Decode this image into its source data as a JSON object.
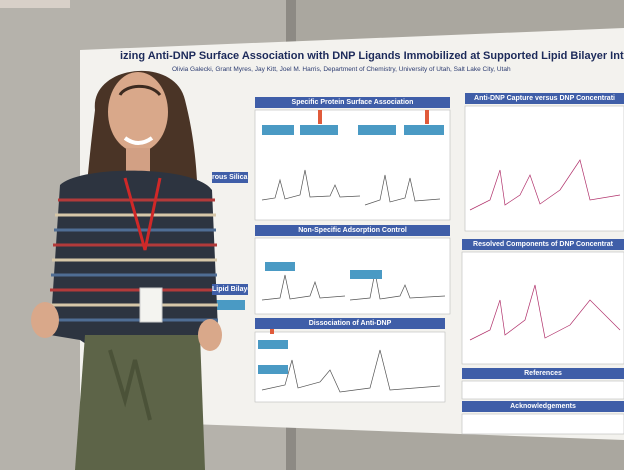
{
  "poster": {
    "title": "izing Anti-DNP Surface Association with DNP Ligands Immobilized at Supported Lipid Bilayer Interfac",
    "authors": "Olivia Galecki, Grant Myres, Jay Kitt, Joel M. Harris, Department of Chemistry, University of Utah, Salt Lake City, Utah",
    "sections": [
      "Specific Protein Surface Association",
      "Anti-DNP Capture versus DNP Concentrati",
      "Non-Specific Adsorption Control",
      "Resolved Components of DNP Concentrat",
      "Dissociation of Anti-DNP",
      "References",
      "Acknowledgements",
      "rous Silica",
      "Lipid Bilayer"
    ]
  }
}
